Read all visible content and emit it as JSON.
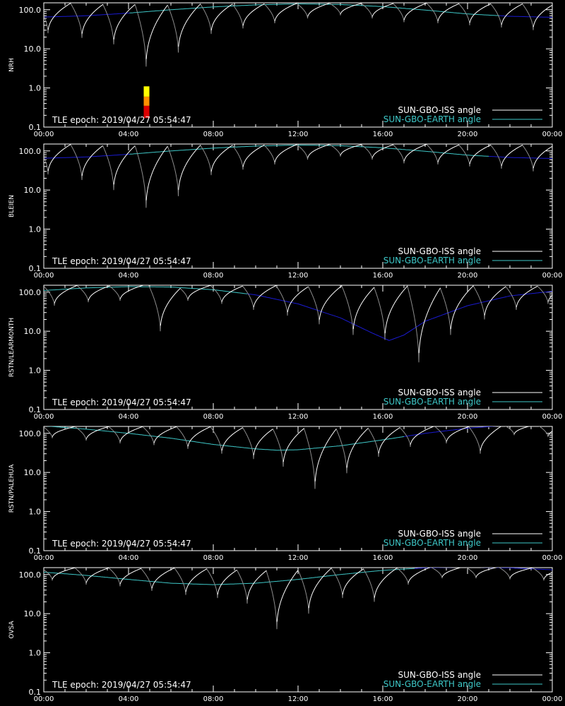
{
  "colors": {
    "background": "#000000",
    "frame": "#ffffff",
    "iss_curve_day": "#ffffff",
    "iss_curve_night": "#8c8c8c",
    "earth_curve_day": "#3ec8c8",
    "earth_curve_night": "#1a1ad2",
    "legend_iss": "#ffffff",
    "legend_earth": "#3ec8c8",
    "marker_top": "#ffff00",
    "marker_mid": "#ff9000",
    "marker_bottom": "#dd0000"
  },
  "chart_data": [
    {
      "type": "line",
      "station": "NRH",
      "ylabel": "NRH",
      "epoch_text": "TLE epoch: 2019/04/27 05:54:47",
      "x_ticks": [
        "00:00",
        "04:00",
        "08:00",
        "12:00",
        "16:00",
        "20:00",
        "00:00"
      ],
      "y_ticks": [
        "0.1",
        "1.0",
        "10.0",
        "100.0"
      ],
      "y_scale": "log",
      "ylim": [
        0.1,
        150
      ],
      "xlim_hours": [
        0,
        24
      ],
      "series": [
        {
          "name": "SUN-GBO-ISS angle",
          "iss_minima": [
            [
              0.2,
              25
            ],
            [
              1.8,
              19
            ],
            [
              3.3,
              13
            ],
            [
              4.83,
              3.5
            ],
            [
              6.35,
              8
            ],
            [
              7.9,
              24
            ],
            [
              9.4,
              33
            ],
            [
              10.9,
              45
            ],
            [
              12.45,
              60
            ],
            [
              14.0,
              72
            ],
            [
              15.5,
              60
            ],
            [
              17.0,
              48
            ],
            [
              18.6,
              45
            ],
            [
              20.1,
              40
            ],
            [
              21.6,
              35
            ],
            [
              23.1,
              30
            ]
          ],
          "iss_maximum_approx": 150
        },
        {
          "name": "SUN-GBO-EARTH angle",
          "earth_curve": [
            [
              0,
              65
            ],
            [
              2,
              70
            ],
            [
              4,
              82
            ],
            [
              6,
              100
            ],
            [
              8,
              118
            ],
            [
              10,
              133
            ],
            [
              12,
              141
            ],
            [
              14,
              136
            ],
            [
              16,
              120
            ],
            [
              18,
              98
            ],
            [
              20,
              78
            ],
            [
              22,
              68
            ],
            [
              24,
              64
            ]
          ],
          "day_interval_hours": [
            4,
            21.5
          ]
        }
      ],
      "markers": [
        {
          "hour": 4.85,
          "from": 0.15,
          "to": 1.1,
          "stops": [
            0.17,
            0.22,
            0.35,
            0.6,
            1.1
          ]
        }
      ]
    },
    {
      "type": "line",
      "station": "BLEIEN",
      "ylabel": "BLEIEN",
      "epoch_text": "TLE epoch: 2019/04/27 05:54:47",
      "x_ticks": [
        "00:00",
        "04:00",
        "08:00",
        "12:00",
        "16:00",
        "20:00",
        "00:00"
      ],
      "y_ticks": [
        "0.1",
        "1.0",
        "10.0",
        "100.0"
      ],
      "y_scale": "log",
      "ylim": [
        0.1,
        150
      ],
      "xlim_hours": [
        0,
        24
      ],
      "series": [
        {
          "name": "SUN-GBO-ISS angle",
          "iss_minima": [
            [
              0.2,
              25
            ],
            [
              1.8,
              18
            ],
            [
              3.3,
              10
            ],
            [
              4.83,
              3.5
            ],
            [
              6.35,
              7
            ],
            [
              7.9,
              24
            ],
            [
              9.4,
              33
            ],
            [
              10.9,
              45
            ],
            [
              12.45,
              60
            ],
            [
              14.0,
              72
            ],
            [
              15.5,
              60
            ],
            [
              17.0,
              48
            ],
            [
              18.6,
              45
            ],
            [
              20.1,
              40
            ],
            [
              21.6,
              35
            ],
            [
              23.1,
              30
            ]
          ],
          "iss_maximum_approx": 150
        },
        {
          "name": "SUN-GBO-EARTH angle",
          "earth_curve": [
            [
              0,
              65
            ],
            [
              2,
              70
            ],
            [
              4,
              82
            ],
            [
              6,
              100
            ],
            [
              8,
              118
            ],
            [
              10,
              133
            ],
            [
              12,
              141
            ],
            [
              14,
              136
            ],
            [
              16,
              120
            ],
            [
              18,
              98
            ],
            [
              20,
              78
            ],
            [
              22,
              68
            ],
            [
              24,
              64
            ]
          ],
          "day_interval_hours": [
            4,
            21
          ]
        }
      ],
      "markers": []
    },
    {
      "type": "line",
      "station": "RSTN/LEARMONTH",
      "ylabel": "RSTN/LEARMONTH",
      "epoch_text": "TLE epoch: 2019/04/27 05:54:47",
      "x_ticks": [
        "00:00",
        "04:00",
        "08:00",
        "12:00",
        "16:00",
        "20:00",
        "00:00"
      ],
      "y_ticks": [
        "0.1",
        "1.0",
        "10.0",
        "100.0"
      ],
      "y_scale": "log",
      "ylim": [
        0.1,
        150
      ],
      "xlim_hours": [
        0,
        24
      ],
      "series": [
        {
          "name": "SUN-GBO-ISS angle",
          "iss_minima": [
            [
              0.5,
              45
            ],
            [
              2.1,
              55
            ],
            [
              3.6,
              60
            ],
            [
              5.5,
              10
            ],
            [
              6.8,
              60
            ],
            [
              8.4,
              50
            ],
            [
              9.9,
              35
            ],
            [
              11.5,
              25
            ],
            [
              13.0,
              15
            ],
            [
              14.6,
              8
            ],
            [
              16.1,
              6
            ],
            [
              17.7,
              1.6
            ],
            [
              19.2,
              8
            ],
            [
              20.8,
              20
            ],
            [
              22.3,
              35
            ],
            [
              23.8,
              50
            ]
          ],
          "iss_maximum_approx": 150
        },
        {
          "name": "SUN-GBO-EARTH angle",
          "earth_curve": [
            [
              0,
              110
            ],
            [
              2,
              128
            ],
            [
              4,
              138
            ],
            [
              6,
              135
            ],
            [
              8,
              115
            ],
            [
              10,
              85
            ],
            [
              12,
              50
            ],
            [
              14,
              22
            ],
            [
              15.5,
              9
            ],
            [
              16.3,
              5.8
            ],
            [
              17,
              8
            ],
            [
              18,
              18
            ],
            [
              20,
              45
            ],
            [
              22,
              80
            ],
            [
              24,
              105
            ]
          ],
          "day_interval_hours": [
            0,
            9.6
          ]
        }
      ],
      "markers": []
    },
    {
      "type": "line",
      "station": "RSTN/PALEHUA",
      "ylabel": "RSTN/PALEHUA",
      "epoch_text": "TLE epoch: 2019/04/27 05:54:47",
      "x_ticks": [
        "00:00",
        "04:00",
        "08:00",
        "12:00",
        "16:00",
        "20:00",
        "00:00"
      ],
      "y_ticks": [
        "0.1",
        "1.0",
        "10.0",
        "100.0"
      ],
      "y_scale": "log",
      "ylim": [
        0.1,
        150
      ],
      "xlim_hours": [
        0,
        24
      ],
      "series": [
        {
          "name": "SUN-GBO-ISS angle",
          "iss_minima": [
            [
              0.4,
              75
            ],
            [
              2.0,
              65
            ],
            [
              3.6,
              55
            ],
            [
              5.2,
              50
            ],
            [
              6.8,
              40
            ],
            [
              8.4,
              30
            ],
            [
              9.9,
              22
            ],
            [
              11.3,
              14
            ],
            [
              12.8,
              3.8
            ],
            [
              14.3,
              9.5
            ],
            [
              15.8,
              25
            ],
            [
              17.3,
              45
            ],
            [
              19.0,
              55
            ],
            [
              20.6,
              30
            ],
            [
              22.2,
              90
            ],
            [
              23.8,
              80
            ]
          ],
          "iss_maximum_approx": 150
        },
        {
          "name": "SUN-GBO-EARTH angle",
          "earth_curve": [
            [
              0,
              155
            ],
            [
              2,
              128
            ],
            [
              4,
              100
            ],
            [
              6,
              75
            ],
            [
              8,
              52
            ],
            [
              10,
              40
            ],
            [
              11,
              37
            ],
            [
              12,
              38
            ],
            [
              14,
              48
            ],
            [
              16,
              68
            ],
            [
              18,
              100
            ],
            [
              20,
              135
            ],
            [
              22,
              162
            ],
            [
              24,
              160
            ]
          ],
          "day_interval_hours": [
            0,
            17
          ]
        }
      ],
      "markers": []
    },
    {
      "type": "line",
      "station": "OVSA",
      "ylabel": "OVSA",
      "epoch_text": "TLE epoch: 2019/04/27 05:54:47",
      "x_ticks": [
        "00:00",
        "04:00",
        "08:00",
        "12:00",
        "16:00",
        "20:00",
        "00:00"
      ],
      "y_ticks": [
        "0.1",
        "1.0",
        "10.0",
        "100.0"
      ],
      "y_scale": "log",
      "ylim": [
        0.1,
        150
      ],
      "xlim_hours": [
        0,
        24
      ],
      "series": [
        {
          "name": "SUN-GBO-ISS angle",
          "iss_minima": [
            [
              0.4,
              70
            ],
            [
              2.0,
              55
            ],
            [
              3.6,
              50
            ],
            [
              5.1,
              38
            ],
            [
              6.7,
              30
            ],
            [
              8.2,
              25
            ],
            [
              9.6,
              18
            ],
            [
              11.0,
              4
            ],
            [
              12.5,
              10
            ],
            [
              14.1,
              25
            ],
            [
              15.6,
              20
            ],
            [
              17.2,
              55
            ],
            [
              18.8,
              80
            ],
            [
              20.4,
              80
            ],
            [
              22.0,
              75
            ],
            [
              23.6,
              70
            ]
          ],
          "iss_maximum_approx": 150
        },
        {
          "name": "SUN-GBO-EARTH angle",
          "earth_curve": [
            [
              0,
              115
            ],
            [
              2,
              95
            ],
            [
              4,
              75
            ],
            [
              6,
              60
            ],
            [
              8,
              55
            ],
            [
              10,
              60
            ],
            [
              12,
              75
            ],
            [
              14,
              100
            ],
            [
              16,
              128
            ],
            [
              18,
              148
            ],
            [
              20,
              155
            ],
            [
              22,
              148
            ],
            [
              24,
              132
            ]
          ],
          "day_interval_hours": [
            0,
            17.5
          ]
        }
      ],
      "markers": []
    }
  ]
}
